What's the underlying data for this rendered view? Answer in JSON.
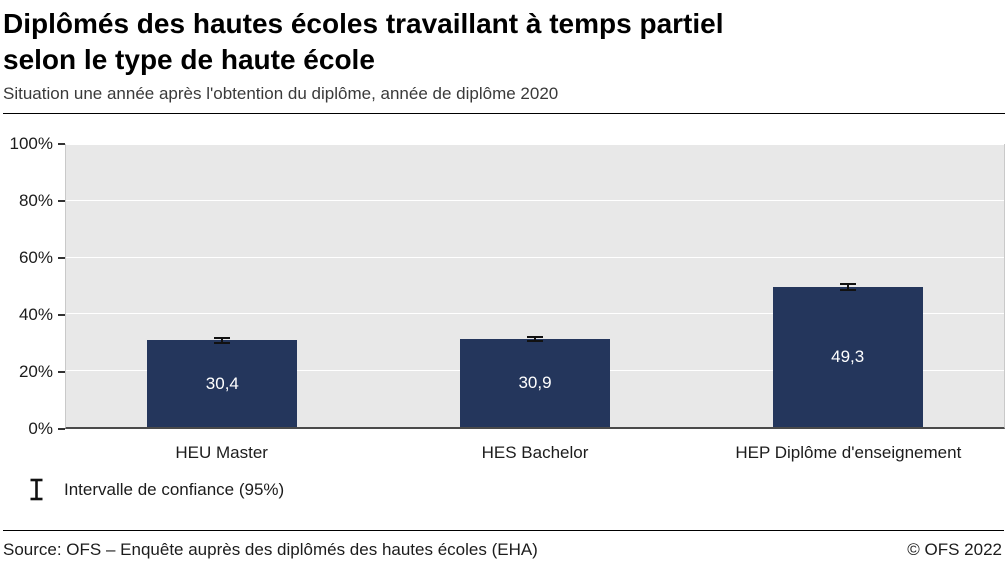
{
  "header": {
    "title_line1": "Diplômés des hautes écoles travaillant à temps partiel",
    "title_line2": "selon le type de haute école",
    "subtitle": "Situation une année après l'obtention du diplôme, année de diplôme 2020"
  },
  "chart_data": {
    "type": "bar",
    "categories": [
      "HEU Master",
      "HES Bachelor",
      "HEP Diplôme d'enseignement"
    ],
    "values": [
      30.4,
      30.9,
      49.3
    ],
    "value_labels": [
      "30,4",
      "30,9",
      "49,3"
    ],
    "error_margins": [
      1.2,
      1.2,
      1.4
    ],
    "title": "Diplômés des hautes écoles travaillant à temps partiel selon le type de haute école",
    "xlabel": "",
    "ylabel": "",
    "ylim": [
      0,
      100
    ],
    "yticks": [
      "100%",
      "80%",
      "60%",
      "40%",
      "20%",
      "0%"
    ],
    "grid": true,
    "bar_color": "#24365c",
    "plot_bg": "#e8e8e8",
    "legend_label": "Intervalle de confiance (95%)",
    "legend_position": "bottom-left"
  },
  "footer": {
    "source": "Source: OFS – Enquête auprès des diplômés des hautes écoles (EHA)",
    "copyright": "© OFS 2022"
  }
}
